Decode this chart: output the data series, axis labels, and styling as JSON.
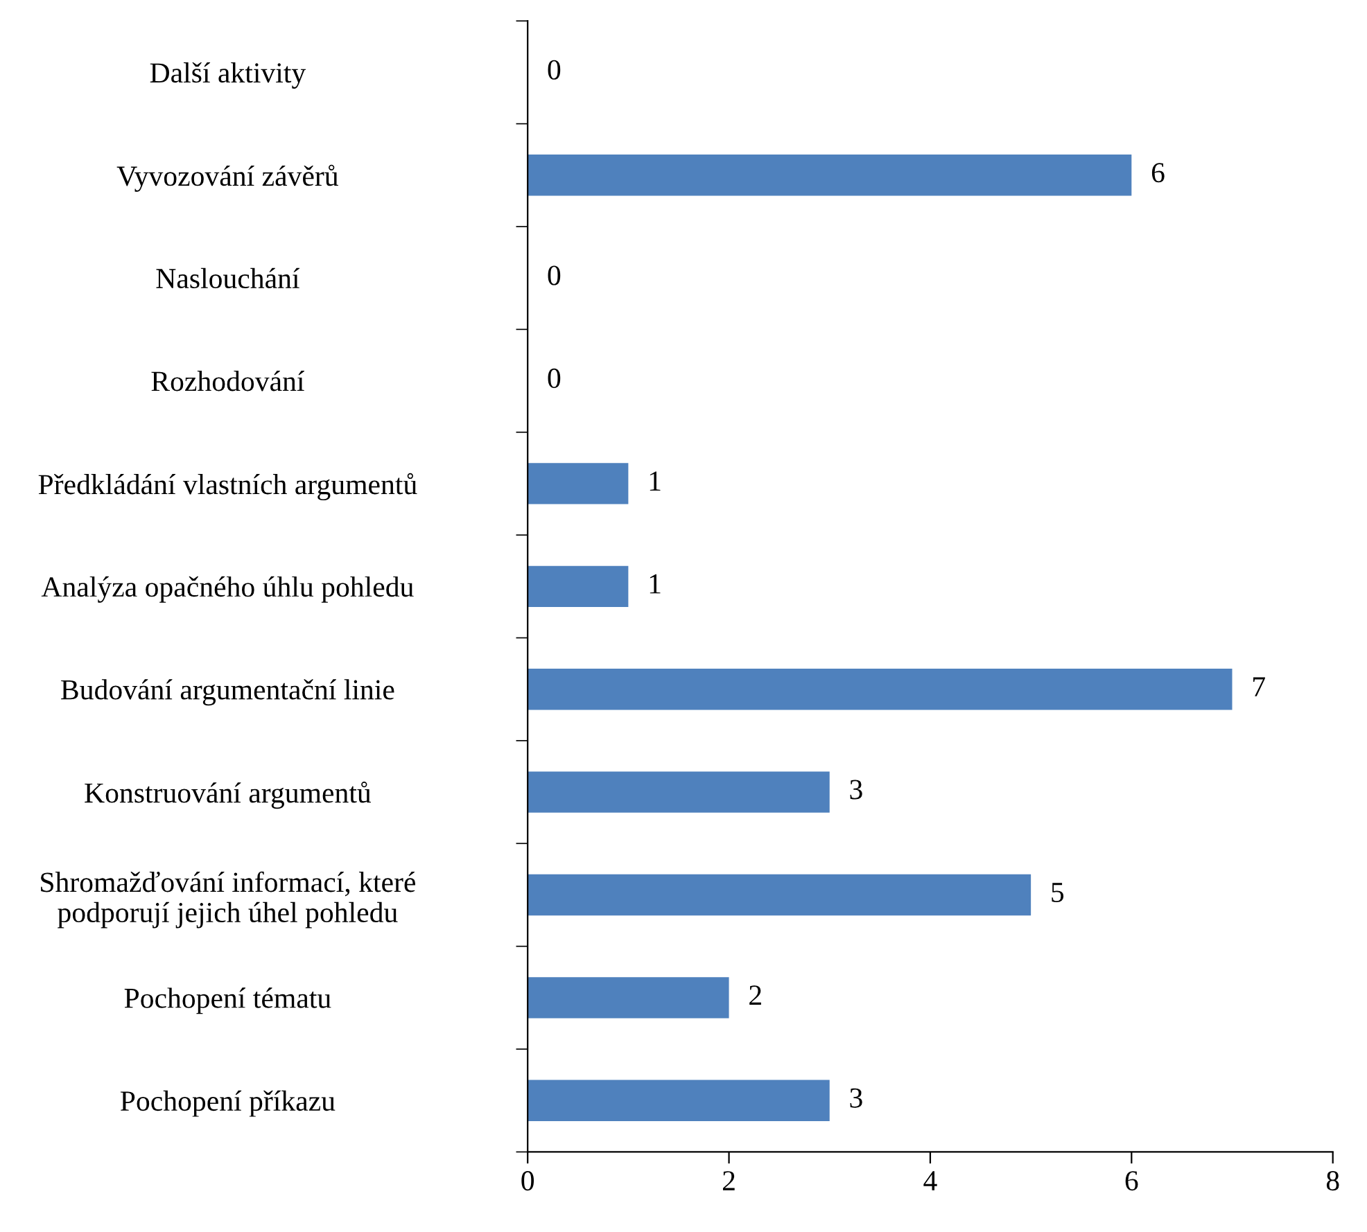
{
  "chart_data": {
    "type": "bar",
    "orientation": "horizontal",
    "categories": [
      "Další aktivity",
      "Vyvozování závěrů",
      "Naslouchání",
      "Rozhodování",
      "Předkládání vlastních argumentů",
      "Analýza opačného úhlu pohledu",
      "Budování argumentační linie",
      "Konstruování argumentů",
      "Shromažďování informací, které\npodporují jejich úhel pohledu",
      "Pochopení tématu",
      "Pochopení příkazu"
    ],
    "values": [
      0,
      6,
      0,
      0,
      1,
      1,
      7,
      3,
      5,
      2,
      3
    ],
    "color": "#4f81bd",
    "xlim": [
      0,
      8
    ],
    "xticks": [
      0,
      2,
      4,
      6,
      8
    ],
    "grid": false,
    "legend": false,
    "data_labels": true
  }
}
